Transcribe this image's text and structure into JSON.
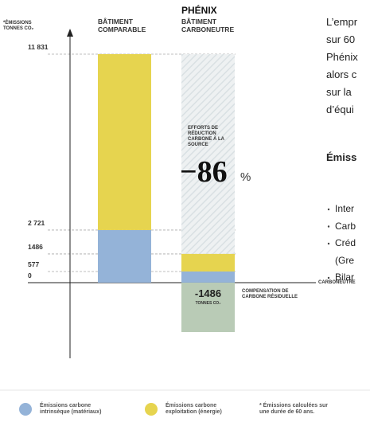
{
  "chart_data": {
    "type": "stacked_bar",
    "y_label": "*ÉMISSIONS TONNES CO₂",
    "highlight": "PHÉNIX",
    "categories": [
      "BÂTIMENT COMPARABLE",
      "BÂTIMENT CARBONEUTRE"
    ],
    "series": [
      {
        "name": "Émissions carbone intrinsèque (matériaux)",
        "color": "#94b3d8",
        "values": [
          2721,
          577
        ]
      },
      {
        "name": "Émissions carbone exploitation (énergie)",
        "color": "#e6d44f",
        "values": [
          9110,
          909
        ]
      }
    ],
    "ylim": [
      -1486,
      11831
    ],
    "yticks": [
      {
        "value": 11831,
        "label": "11 831"
      },
      {
        "value": 2721,
        "label": "2 721"
      },
      1486,
      577,
      0
    ],
    "baseline_label": "CARBONEUTRE",
    "reduction": {
      "text": "EFFORTS DE RÉDUCTION CARBONE À LA SOURCE",
      "value": -86,
      "value_label": "−86",
      "unit": "%"
    },
    "compensation": {
      "value": -1486,
      "unit": "TONNES CO₂",
      "text": "COMPENSATION DE CARBONE RÉSIDUELLE",
      "color": "#b9cbb6"
    },
    "footnote": "* Émissions calculées sur une durée de 60 ans."
  },
  "side_text": {
    "paragraph": [
      "L’empr",
      "sur 60",
      "Phénix",
      "alors c",
      "sur la",
      "d’équi"
    ],
    "heading": "Émiss",
    "bullets": [
      [
        "Inter"
      ],
      [
        "Carb"
      ],
      [
        "Créd",
        "(Gre"
      ],
      [
        "Bilar"
      ]
    ]
  }
}
